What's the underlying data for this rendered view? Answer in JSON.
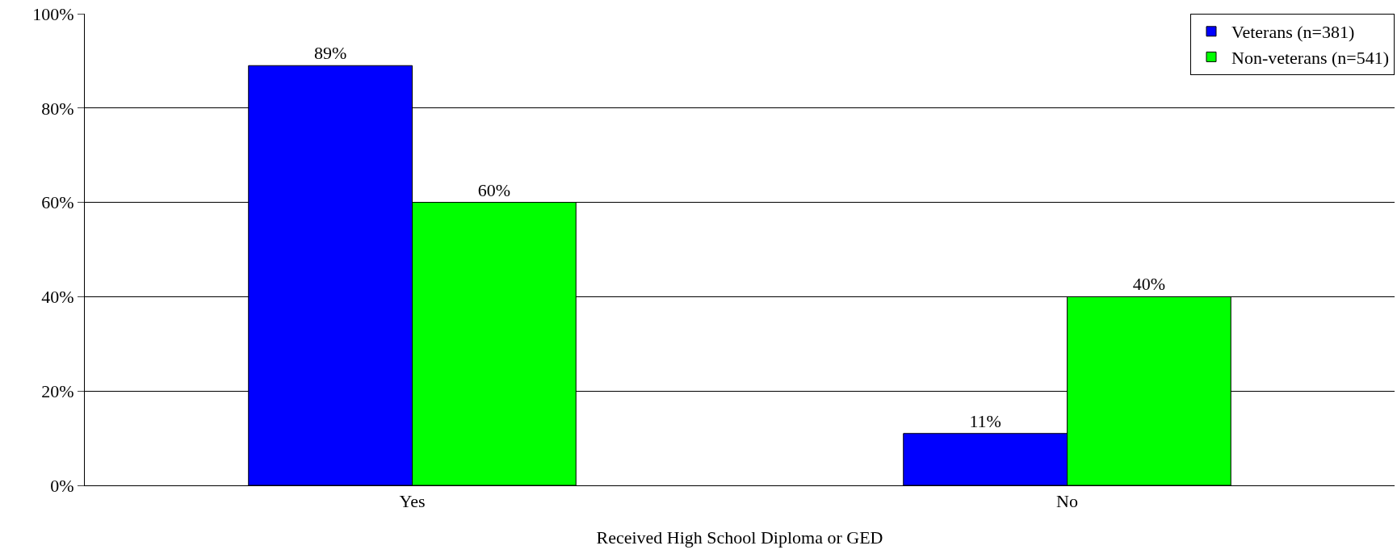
{
  "chart_data": {
    "type": "bar",
    "xlabel": "Received High School Diploma or GED",
    "categories": [
      "Yes",
      "No"
    ],
    "series": [
      {
        "name": "Veterans (n=381)",
        "color": "#0000ff",
        "values": [
          89,
          11
        ],
        "value_labels": [
          "89%",
          "11%"
        ]
      },
      {
        "name": "Non-veterans (n=541)",
        "color": "#00ff00",
        "values": [
          60,
          40
        ],
        "value_labels": [
          "60%",
          "40%"
        ]
      }
    ],
    "ylim": [
      0,
      100
    ],
    "yticks": [
      {
        "value": 0,
        "label": "0%"
      },
      {
        "value": 20,
        "label": "20%"
      },
      {
        "value": 40,
        "label": "40%"
      },
      {
        "value": 60,
        "label": "60%"
      },
      {
        "value": 80,
        "label": "80%"
      },
      {
        "value": 100,
        "label": "100%"
      }
    ],
    "grid": "y",
    "legend": "top right"
  }
}
